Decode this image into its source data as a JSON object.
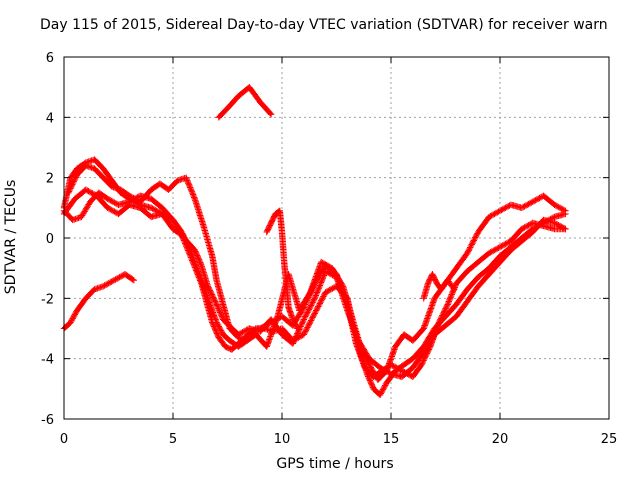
{
  "chart_data": {
    "type": "scatter",
    "title": "Day 115 of 2015, Sidereal Day-to-day VTEC variation (SDTVAR) for receiver warn",
    "xlabel": "GPS time / hours",
    "ylabel": "SDTVAR / TECUs",
    "xlim": [
      0,
      25
    ],
    "ylim": [
      -6,
      6
    ],
    "xticks": [
      "0",
      "5",
      "10",
      "15",
      "20",
      "25"
    ],
    "yticks": [
      "-6",
      "-4",
      "-2",
      "0",
      "2",
      "4",
      "6"
    ],
    "grid": true,
    "marker": "+",
    "color": "#ff0000",
    "series": [
      {
        "x": [
          0.0,
          0.3,
          0.6,
          1.0,
          1.4,
          1.8,
          2.3,
          2.8,
          3.2
        ],
        "y": [
          -3.0,
          -2.8,
          -2.4,
          -2.0,
          -1.7,
          -1.6,
          -1.4,
          -1.2,
          -1.4
        ]
      },
      {
        "x": [
          0.0,
          0.3,
          0.6,
          1.0,
          1.4,
          1.8,
          2.2,
          2.6,
          3.0,
          3.5,
          4.0,
          4.5,
          5.0,
          5.4,
          5.8,
          6.3,
          6.8,
          7.1,
          7.4,
          7.7,
          8.0,
          8.3,
          8.6,
          9.0,
          9.5,
          10.0,
          10.5,
          11.0,
          11.5,
          12.0,
          12.5,
          13.0,
          13.4,
          13.8,
          14.2,
          14.6,
          15.0,
          15.5,
          16.0,
          16.4,
          16.8,
          17.2,
          17.6,
          18.0,
          18.5,
          19.0,
          19.5,
          20.0,
          20.5,
          21.0,
          21.5,
          22.0,
          22.5,
          23.0
        ],
        "y": [
          1.0,
          2.0,
          2.3,
          2.5,
          2.6,
          2.3,
          1.9,
          1.5,
          1.3,
          1.1,
          1.0,
          0.8,
          0.3,
          0.1,
          -0.6,
          -1.5,
          -2.8,
          -3.3,
          -3.6,
          -3.7,
          -3.5,
          -3.3,
          -3.1,
          -3.0,
          -2.8,
          -2.6,
          -2.9,
          -2.3,
          -1.5,
          -0.9,
          -1.2,
          -2.2,
          -3.5,
          -4.3,
          -4.6,
          -4.4,
          -4.2,
          -4.4,
          -4.6,
          -4.2,
          -3.6,
          -2.8,
          -2.2,
          -1.5,
          -1.1,
          -0.8,
          -0.5,
          -0.3,
          -0.1,
          0.3,
          0.5,
          0.4,
          0.3,
          0.3
        ]
      },
      {
        "x": [
          0.0,
          0.4,
          0.8,
          1.2,
          1.6,
          2.0,
          2.5,
          3.0,
          3.5,
          4.0,
          4.5,
          5.0,
          5.4,
          5.8,
          6.2,
          6.6,
          7.0,
          7.3,
          7.6,
          8.0,
          8.4,
          8.8,
          9.2,
          9.6,
          10.0,
          10.5,
          11.0,
          11.5,
          12.0,
          12.5,
          13.0,
          13.3,
          13.6,
          13.9,
          14.2,
          14.5,
          14.8,
          15.2,
          15.6,
          16.0,
          16.5,
          17.0,
          17.5,
          18.0,
          18.5,
          19.0,
          19.5,
          20.0,
          20.5,
          21.0,
          21.5,
          22.0,
          22.5,
          23.0
        ],
        "y": [
          0.9,
          0.6,
          0.7,
          1.2,
          1.5,
          1.3,
          1.1,
          1.2,
          1.4,
          1.3,
          1.0,
          0.6,
          0.2,
          -0.4,
          -1.2,
          -2.0,
          -2.8,
          -3.2,
          -3.4,
          -3.6,
          -3.4,
          -3.0,
          -3.0,
          -3.1,
          -3.0,
          -3.4,
          -3.2,
          -2.5,
          -1.8,
          -1.6,
          -2.0,
          -3.0,
          -3.8,
          -4.5,
          -5.0,
          -5.2,
          -4.8,
          -4.4,
          -4.2,
          -4.0,
          -3.6,
          -3.0,
          -2.6,
          -2.2,
          -1.7,
          -1.3,
          -1.0,
          -0.6,
          -0.3,
          0.0,
          0.3,
          0.5,
          0.7,
          0.8
        ]
      },
      {
        "x": [
          0.2,
          0.6,
          1.0,
          1.4,
          1.8,
          2.2,
          2.6,
          3.0,
          3.5,
          4.0,
          4.4,
          4.8,
          5.2,
          5.6,
          6.0,
          6.4,
          6.8,
          7.0,
          7.3,
          7.6,
          8.0,
          8.4,
          8.8,
          9.3,
          9.8,
          10.3,
          10.8,
          11.3,
          11.8,
          12.3,
          12.8,
          13.2,
          13.6,
          14.0,
          14.4,
          14.8,
          15.2,
          15.6,
          16.0,
          16.5,
          17.0,
          17.5,
          18.0,
          18.5,
          19.0,
          19.5,
          20.0,
          20.5,
          21.0,
          21.5,
          22.0,
          22.5,
          23.0
        ],
        "y": [
          1.5,
          2.1,
          2.4,
          2.3,
          2.0,
          1.7,
          1.6,
          1.4,
          1.2,
          1.6,
          1.8,
          1.6,
          1.9,
          2.0,
          1.3,
          0.4,
          -0.6,
          -1.4,
          -2.2,
          -3.0,
          -3.3,
          -3.4,
          -3.2,
          -3.6,
          -2.6,
          -1.2,
          -2.4,
          -1.8,
          -0.8,
          -1.0,
          -1.6,
          -2.6,
          -3.6,
          -4.2,
          -4.7,
          -4.4,
          -3.6,
          -3.2,
          -3.4,
          -3.0,
          -2.0,
          -1.5,
          -1.0,
          -0.5,
          0.2,
          0.7,
          0.9,
          1.1,
          1.0,
          1.2,
          1.4,
          1.1,
          0.9
        ]
      },
      {
        "x": [
          0.0,
          0.5,
          1.0,
          1.5,
          2.0,
          2.5,
          3.0,
          3.5,
          4.0,
          4.5,
          5.0,
          5.5,
          6.0,
          6.3,
          6.6,
          7.0,
          7.3,
          7.7,
          8.0,
          8.5,
          9.0,
          9.5,
          10.0,
          10.5,
          11.0,
          11.5,
          12.0,
          12.5,
          13.0,
          13.5,
          14.0,
          14.5,
          15.0,
          15.5,
          16.0,
          16.5,
          17.0,
          17.5,
          18.0,
          18.5,
          19.0,
          19.5,
          20.0,
          20.5,
          21.0,
          21.5,
          22.0,
          22.5,
          23.0
        ],
        "y": [
          0.8,
          1.3,
          1.6,
          1.4,
          1.0,
          0.8,
          1.1,
          1.0,
          0.7,
          0.8,
          0.6,
          0.0,
          -0.4,
          -0.9,
          -1.6,
          -2.2,
          -2.7,
          -3.0,
          -3.2,
          -3.0,
          -3.1,
          -2.7,
          -3.2,
          -3.5,
          -2.7,
          -2.0,
          -1.1,
          -1.3,
          -2.4,
          -3.4,
          -4.0,
          -4.3,
          -4.5,
          -4.6,
          -4.3,
          -3.8,
          -3.2,
          -2.9,
          -2.6,
          -2.1,
          -1.6,
          -1.2,
          -0.8,
          -0.4,
          -0.1,
          0.2,
          0.6,
          0.5,
          0.3
        ]
      },
      {
        "x": [
          7.1,
          7.5,
          8.0,
          8.5,
          9.0,
          9.5
        ],
        "y": [
          4.0,
          4.3,
          4.7,
          5.0,
          4.5,
          4.1
        ]
      },
      {
        "x": [
          9.3,
          9.5,
          9.7,
          9.9,
          10.0,
          10.1,
          10.2,
          10.3,
          10.5,
          10.7
        ],
        "y": [
          0.2,
          0.5,
          0.8,
          0.9,
          0.2,
          -0.8,
          -1.5,
          -2.3,
          -2.7,
          -3.0
        ]
      },
      {
        "x": [
          16.5,
          16.7,
          16.9,
          17.1,
          17.3,
          17.6,
          17.9
        ],
        "y": [
          -2.0,
          -1.5,
          -1.2,
          -1.5,
          -1.7,
          -1.4,
          -1.7
        ]
      }
    ]
  }
}
